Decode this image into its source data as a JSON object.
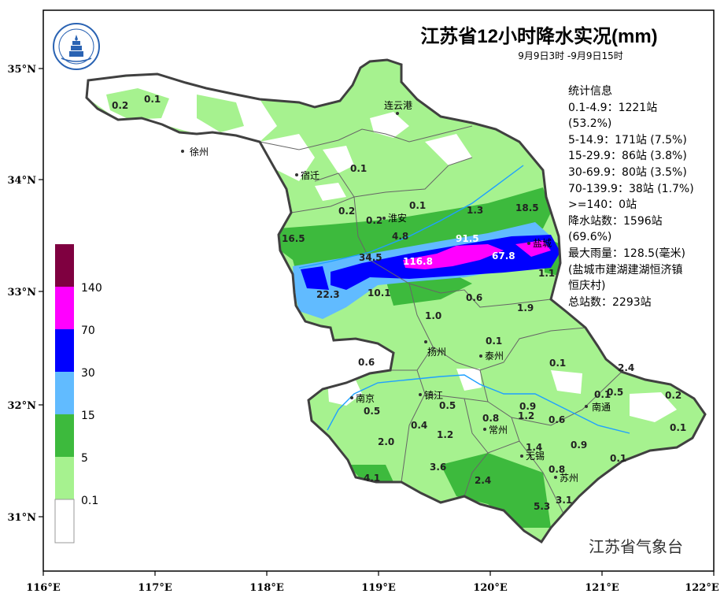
{
  "title": "江苏省12小时降水实况(mm)",
  "subtitle": "9月9日3时 -9月9日15时",
  "stats": [
    "统计信息",
    "0.1-4.9：1221站",
    "(53.2%)",
    "5-14.9：171站 (7.5%)",
    "15-29.9：86站 (3.8%)",
    "30-69.9：80站 (3.5%)",
    "70-139.9：38站 (1.7%)",
    ">=140：0站",
    "降水站数：1596站",
    "(69.6%)",
    "最大雨量：128.5(毫米)",
    "(盐城市建湖建湖恒济镇",
    "恒庆村)",
    "总站数：2293站"
  ],
  "agency": "江苏省气象台",
  "axes": {
    "x_ticks": [
      "116°E",
      "117°E",
      "118°E",
      "119°E",
      "120°E",
      "121°E",
      "122°E"
    ],
    "y_ticks": [
      "35°N",
      "34°N",
      "33°N",
      "32°N",
      "31°N"
    ]
  },
  "legend": {
    "labels": [
      "0.1",
      "5",
      "15",
      "30",
      "70",
      "140"
    ],
    "colors": [
      "#ffffff",
      "#a6f28f",
      "#3dba3d",
      "#61bbff",
      "#0000ff",
      "#ff00ff",
      "#7f0040"
    ]
  },
  "cities": [
    "连云港",
    "徐州",
    "宿迁",
    "淮安",
    "盐城",
    "扬州",
    "泰州",
    "南京",
    "镇江",
    "常州",
    "无锡",
    "苏州",
    "南通"
  ],
  "values": [
    "0.2",
    "0.1",
    "0.1",
    "0.1",
    "0.2",
    "0.2",
    "1.3",
    "18.5",
    "16.5",
    "4.8",
    "34.5",
    "91.5",
    "116.8",
    "67.8",
    "1.1",
    "22.3",
    "10.1",
    "0.6",
    "1.9",
    "1.0",
    "0.1",
    "0.6",
    "0.1",
    "2.4",
    "0.1",
    "0.5",
    "0.2",
    "0.5",
    "0.5",
    "0.8",
    "0.9",
    "1.2",
    "0.6",
    "0.4",
    "1.2",
    "2.0",
    "1.4",
    "0.9",
    "0.1",
    "0.8",
    "3.6",
    "4.1",
    "2.4",
    "3.1",
    "5.3",
    "0.1"
  ]
}
